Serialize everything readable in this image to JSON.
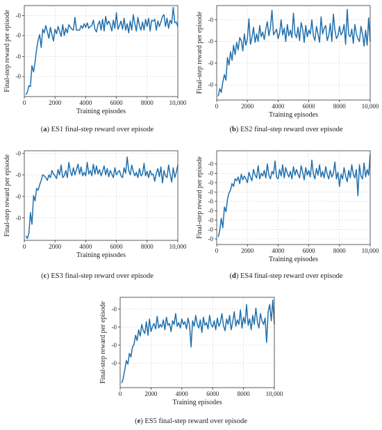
{
  "chart_data": [
    {
      "type": "line",
      "caption_letter": "a",
      "caption_text": "ES1 final-step reward over episode",
      "xlabel": "Training episodes",
      "ylabel": "Final-step reward per episode",
      "xlim": [
        0,
        10000
      ],
      "xticks": [
        0,
        2000,
        4000,
        6000,
        8000,
        10000
      ],
      "xtick_labels": [
        "0",
        "2000",
        "4000",
        "6000",
        "8000",
        "10,000"
      ],
      "ylim": [
        0,
        100
      ],
      "yticks": [
        89,
        67,
        44,
        22
      ],
      "ytick_labels": [
        "-0",
        "-0",
        "-0",
        "-0"
      ],
      "grid": true,
      "x": [
        100,
        200,
        300,
        400,
        500,
        600,
        700,
        800,
        900,
        1000,
        1100,
        1200,
        1300,
        1400,
        1500,
        1600,
        1700,
        1800,
        1900,
        2000,
        2100,
        2200,
        2300,
        2400,
        2500,
        2600,
        2700,
        2800,
        2900,
        3000,
        3100,
        3200,
        3300,
        3400,
        3500,
        3600,
        3700,
        3800,
        3900,
        4000,
        4100,
        4200,
        4300,
        4400,
        4500,
        4600,
        4700,
        4800,
        4900,
        5000,
        5100,
        5200,
        5300,
        5400,
        5500,
        5600,
        5700,
        5800,
        5900,
        6000,
        6100,
        6200,
        6300,
        6400,
        6500,
        6600,
        6700,
        6800,
        6900,
        7000,
        7100,
        7200,
        7300,
        7400,
        7500,
        7600,
        7700,
        7800,
        7900,
        8000,
        8100,
        8200,
        8300,
        8400,
        8500,
        8600,
        8700,
        8800,
        8900,
        9000,
        9100,
        9200,
        9300,
        9400,
        9500,
        9600,
        9700,
        9800,
        9900,
        10000
      ],
      "series": [
        {
          "values": [
            2,
            5,
            12,
            11,
            34,
            27,
            38,
            52,
            62,
            68,
            54,
            74,
            70,
            78,
            71,
            64,
            76,
            68,
            61,
            74,
            69,
            77,
            72,
            66,
            79,
            67,
            75,
            70,
            79,
            76,
            74,
            73,
            87,
            73,
            73,
            73,
            78,
            75,
            80,
            76,
            81,
            75,
            77,
            78,
            84,
            74,
            71,
            79,
            83,
            73,
            85,
            72,
            88,
            79,
            83,
            79,
            72,
            84,
            75,
            92,
            74,
            78,
            83,
            74,
            86,
            73,
            80,
            70,
            83,
            73,
            90,
            80,
            72,
            87,
            78,
            73,
            82,
            73,
            85,
            77,
            86,
            72,
            84,
            83,
            85,
            73,
            83,
            77,
            82,
            88,
            90,
            77,
            86,
            75,
            84,
            80,
            98,
            81,
            82,
            77
          ]
        }
      ]
    },
    {
      "type": "line",
      "caption_letter": "b",
      "caption_text": "ES2 final-step reward over episode",
      "xlabel": "Training episodes",
      "ylabel": "Final-step reward per episode",
      "xlim": [
        0,
        10000
      ],
      "xticks": [
        0,
        2000,
        4000,
        6000,
        8000,
        10000
      ],
      "xtick_labels": [
        "0",
        "2000",
        "4000",
        "6000",
        "8000",
        "10,000"
      ],
      "ylim": [
        0,
        100
      ],
      "yticks": [
        85,
        62,
        39,
        16
      ],
      "ytick_labels": [
        "-0",
        "-0",
        "-0",
        "-0"
      ],
      "grid": true,
      "x": [
        100,
        200,
        300,
        400,
        500,
        600,
        700,
        800,
        900,
        1000,
        1100,
        1200,
        1300,
        1400,
        1500,
        1600,
        1700,
        1800,
        1900,
        2000,
        2100,
        2200,
        2300,
        2400,
        2500,
        2600,
        2700,
        2800,
        2900,
        3000,
        3100,
        3200,
        3300,
        3400,
        3500,
        3600,
        3700,
        3800,
        3900,
        4000,
        4100,
        4200,
        4300,
        4400,
        4500,
        4600,
        4700,
        4800,
        4900,
        5000,
        5100,
        5200,
        5300,
        5400,
        5500,
        5600,
        5700,
        5800,
        5900,
        6000,
        6100,
        6200,
        6300,
        6400,
        6500,
        6600,
        6700,
        6800,
        6900,
        7000,
        7100,
        7200,
        7300,
        7400,
        7500,
        7600,
        7700,
        7800,
        7900,
        8000,
        8100,
        8200,
        8300,
        8400,
        8500,
        8600,
        8700,
        8800,
        8900,
        9000,
        9100,
        9200,
        9300,
        9400,
        9500,
        9600,
        9700,
        9800,
        9900,
        10000
      ],
      "series": [
        {
          "values": [
            4,
            12,
            8,
            19,
            27,
            21,
            45,
            37,
            51,
            42,
            58,
            48,
            61,
            53,
            66,
            63,
            52,
            70,
            58,
            65,
            86,
            59,
            66,
            77,
            61,
            70,
            62,
            79,
            67,
            72,
            64,
            75,
            83,
            68,
            77,
            95,
            69,
            72,
            75,
            65,
            71,
            85,
            69,
            76,
            62,
            80,
            68,
            74,
            66,
            92,
            70,
            66,
            77,
            63,
            82,
            75,
            61,
            79,
            67,
            74,
            70,
            85,
            68,
            63,
            78,
            70,
            61,
            88,
            70,
            76,
            79,
            63,
            68,
            81,
            62,
            91,
            74,
            65,
            68,
            78,
            69,
            72,
            80,
            59,
            96,
            69,
            67,
            75,
            60,
            80,
            70,
            65,
            62,
            78,
            70,
            57,
            74,
            58,
            87,
            62
          ]
        }
      ]
    },
    {
      "type": "line",
      "caption_letter": "c",
      "caption_text": "ES3 final-step reward over episode",
      "xlabel": "Training episodes",
      "ylabel": "Final-step reward per episode",
      "xlim": [
        0,
        10000
      ],
      "xticks": [
        0,
        2000,
        4000,
        6000,
        8000,
        10000
      ],
      "xtick_labels": [
        "0",
        "2000",
        "4000",
        "6000",
        "8000",
        "10,000"
      ],
      "ylim": [
        0,
        100
      ],
      "yticks": [
        97,
        73,
        49,
        25
      ],
      "ytick_labels": [
        "-0",
        "-0",
        "-0",
        "-0"
      ],
      "grid": true,
      "x": [
        100,
        200,
        300,
        400,
        500,
        600,
        700,
        800,
        900,
        1000,
        1100,
        1200,
        1300,
        1400,
        1500,
        1600,
        1700,
        1800,
        1900,
        2000,
        2100,
        2200,
        2300,
        2400,
        2500,
        2600,
        2700,
        2800,
        2900,
        3000,
        3100,
        3200,
        3300,
        3400,
        3500,
        3600,
        3700,
        3800,
        3900,
        4000,
        4100,
        4200,
        4300,
        4400,
        4500,
        4600,
        4700,
        4800,
        4900,
        5000,
        5100,
        5200,
        5300,
        5400,
        5500,
        5600,
        5700,
        5800,
        5900,
        6000,
        6100,
        6200,
        6300,
        6400,
        6500,
        6600,
        6700,
        6800,
        6900,
        7000,
        7100,
        7200,
        7300,
        7400,
        7500,
        7600,
        7700,
        7800,
        7900,
        8000,
        8100,
        8200,
        8300,
        8400,
        8500,
        8600,
        8700,
        8800,
        8900,
        9000,
        9100,
        9200,
        9300,
        9400,
        9500,
        9600,
        9700,
        9800,
        9900,
        10000
      ],
      "series": [
        {
          "values": [
            5,
            2,
            8,
            31,
            18,
            50,
            44,
            58,
            56,
            62,
            67,
            73,
            72,
            70,
            67,
            73,
            70,
            78,
            74,
            72,
            69,
            79,
            73,
            84,
            70,
            72,
            78,
            70,
            87,
            77,
            72,
            81,
            73,
            79,
            85,
            74,
            82,
            72,
            76,
            72,
            87,
            74,
            78,
            72,
            85,
            74,
            83,
            74,
            79,
            72,
            77,
            83,
            73,
            80,
            71,
            78,
            74,
            70,
            81,
            73,
            76,
            78,
            72,
            70,
            81,
            75,
            93,
            78,
            73,
            84,
            77,
            72,
            76,
            70,
            80,
            72,
            74,
            86,
            72,
            77,
            70,
            78,
            73,
            74,
            66,
            75,
            80,
            71,
            82,
            64,
            78,
            72,
            70,
            84,
            74,
            65,
            81,
            70,
            76,
            84
          ]
        }
      ]
    },
    {
      "type": "line",
      "caption_letter": "d",
      "caption_text": "ES4 final-step reward over episode",
      "xlabel": "Training episodes",
      "ylabel": "Final-step reward per episode",
      "xlim": [
        0,
        10000
      ],
      "xticks": [
        0,
        2000,
        4000,
        6000,
        8000,
        10000
      ],
      "xtick_labels": [
        "0",
        "2000",
        "4000",
        "6000",
        "8000",
        "10,000"
      ],
      "ylim": [
        0,
        100
      ],
      "yticks": [
        86,
        76,
        66,
        56,
        46,
        36,
        26,
        16,
        6
      ],
      "ytick_labels": [
        "-0",
        "-0",
        "-0",
        "-0",
        "-0",
        "-0",
        "-0",
        "-0",
        "-0"
      ],
      "grid": true,
      "x": [
        100,
        200,
        300,
        400,
        500,
        600,
        700,
        800,
        900,
        1000,
        1100,
        1200,
        1300,
        1400,
        1500,
        1600,
        1700,
        1800,
        1900,
        2000,
        2100,
        2200,
        2300,
        2400,
        2500,
        2600,
        2700,
        2800,
        2900,
        3000,
        3100,
        3200,
        3300,
        3400,
        3500,
        3600,
        3700,
        3800,
        3900,
        4000,
        4100,
        4200,
        4300,
        4400,
        4500,
        4600,
        4700,
        4800,
        4900,
        5000,
        5100,
        5200,
        5300,
        5400,
        5500,
        5600,
        5700,
        5800,
        5900,
        6000,
        6100,
        6200,
        6300,
        6400,
        6500,
        6600,
        6700,
        6800,
        6900,
        7000,
        7100,
        7200,
        7300,
        7400,
        7500,
        7600,
        7700,
        7800,
        7900,
        8000,
        8100,
        8200,
        8300,
        8400,
        8500,
        8600,
        8700,
        8800,
        8900,
        9000,
        9100,
        9200,
        9300,
        9400,
        9500,
        9600,
        9700,
        9800,
        9900,
        10000
      ],
      "series": [
        {
          "values": [
            8,
            15,
            28,
            18,
            40,
            35,
            48,
            55,
            58,
            65,
            62,
            70,
            68,
            72,
            65,
            75,
            69,
            73,
            70,
            66,
            77,
            72,
            68,
            80,
            74,
            71,
            84,
            70,
            76,
            73,
            79,
            71,
            86,
            74,
            70,
            78,
            75,
            89,
            72,
            70,
            80,
            73,
            85,
            71,
            82,
            76,
            72,
            78,
            70,
            83,
            74,
            80,
            75,
            71,
            84,
            77,
            69,
            82,
            74,
            79,
            72,
            90,
            75,
            70,
            81,
            74,
            85,
            72,
            78,
            71,
            83,
            75,
            70,
            79,
            72,
            76,
            88,
            70,
            77,
            62,
            75,
            70,
            82,
            73,
            67,
            79,
            71,
            85,
            75,
            71,
            80,
            52,
            85,
            73,
            70,
            87,
            72,
            80,
            74,
            96
          ]
        }
      ]
    },
    {
      "type": "line",
      "caption_letter": "e",
      "caption_text": "ES5 final-step reward over episode",
      "xlabel": "Training episodes",
      "ylabel": "Final-step reward per episode",
      "xlim": [
        0,
        10000
      ],
      "xticks": [
        0,
        2000,
        4000,
        6000,
        8000,
        10000
      ],
      "xtick_labels": [
        "0",
        "2000",
        "4000",
        "6000",
        "8000",
        "10,000"
      ],
      "ylim": [
        0,
        100
      ],
      "yticks": [
        87,
        67,
        47,
        27
      ],
      "ytick_labels": [
        "-0",
        "-0",
        "-0",
        "-0"
      ],
      "grid": true,
      "x": [
        100,
        200,
        300,
        400,
        500,
        600,
        700,
        800,
        900,
        1000,
        1100,
        1200,
        1300,
        1400,
        1500,
        1600,
        1700,
        1800,
        1900,
        2000,
        2100,
        2200,
        2300,
        2400,
        2500,
        2600,
        2700,
        2800,
        2900,
        3000,
        3100,
        3200,
        3300,
        3400,
        3500,
        3600,
        3700,
        3800,
        3900,
        4000,
        4100,
        4200,
        4300,
        4400,
        4500,
        4600,
        4700,
        4800,
        4900,
        5000,
        5100,
        5200,
        5300,
        5400,
        5500,
        5600,
        5700,
        5800,
        5900,
        6000,
        6100,
        6200,
        6300,
        6400,
        6500,
        6600,
        6700,
        6800,
        6900,
        7000,
        7100,
        7200,
        7300,
        7400,
        7500,
        7600,
        7700,
        7800,
        7900,
        8000,
        8100,
        8200,
        8300,
        8400,
        8500,
        8600,
        8700,
        8800,
        8900,
        9000,
        9100,
        9200,
        9300,
        9400,
        9500,
        9600,
        9700,
        9800,
        9900,
        10000
      ],
      "series": [
        {
          "values": [
            5,
            10,
            20,
            30,
            26,
            38,
            34,
            45,
            48,
            58,
            52,
            64,
            57,
            70,
            63,
            60,
            73,
            58,
            76,
            62,
            68,
            71,
            65,
            79,
            66,
            70,
            67,
            75,
            64,
            78,
            69,
            71,
            62,
            74,
            70,
            82,
            68,
            72,
            66,
            76,
            70,
            73,
            65,
            77,
            69,
            45,
            74,
            68,
            80,
            70,
            66,
            75,
            61,
            78,
            69,
            72,
            65,
            80,
            70,
            67,
            74,
            64,
            77,
            68,
            72,
            82,
            69,
            63,
            76,
            70,
            80,
            64,
            73,
            84,
            68,
            75,
            70,
            86,
            66,
            78,
            71,
            92,
            69,
            76,
            64,
            80,
            70,
            88,
            73,
            66,
            82,
            74,
            70,
            77,
            50,
            84,
            92,
            74,
            97,
            70
          ]
        }
      ]
    }
  ]
}
